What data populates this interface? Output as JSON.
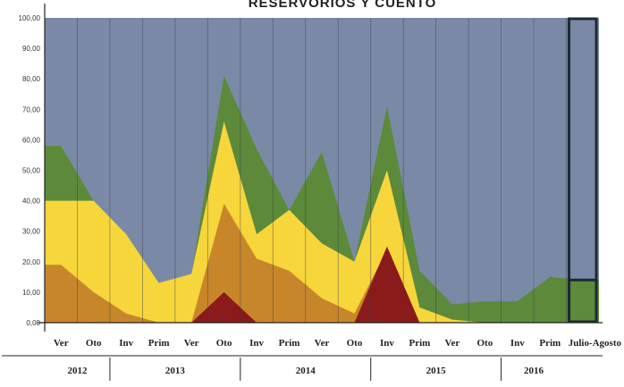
{
  "chart_data": {
    "type": "area",
    "title": "RESERVORIOS Y CUENTO",
    "ylim": [
      0,
      100
    ],
    "y_ticks": [
      "0,00",
      "10,00",
      "20,00",
      "30,00",
      "40,00",
      "50,00",
      "60,00",
      "70,00",
      "80,00",
      "90,00",
      "100,00"
    ],
    "categories": [
      "Ver",
      "Oto",
      "Inv",
      "Prim",
      "Ver",
      "Oto",
      "Inv",
      "Prim",
      "Ver",
      "Oto",
      "Inv",
      "Prim",
      "Ver",
      "Oto",
      "Inv",
      "Prim",
      "Julio-Agosto"
    ],
    "years": [
      {
        "label": "2012",
        "span": [
          0,
          1
        ]
      },
      {
        "label": "2013",
        "span": [
          2,
          5
        ]
      },
      {
        "label": "2014",
        "span": [
          6,
          9
        ]
      },
      {
        "label": "2015",
        "span": [
          10,
          13
        ]
      },
      {
        "label": "2016",
        "span": [
          14,
          15
        ]
      }
    ],
    "series": [
      {
        "color": "#8b1a1a",
        "values": [
          0,
          0,
          0,
          0,
          0,
          10,
          0,
          0,
          0,
          0,
          25,
          0,
          0,
          0,
          0,
          0,
          0
        ]
      },
      {
        "color": "#c8862a",
        "values": [
          19,
          10,
          3,
          0,
          0,
          39,
          21,
          17,
          8,
          3,
          24,
          0,
          0,
          0,
          0,
          0,
          0
        ]
      },
      {
        "color": "#f7d63c",
        "values": [
          40,
          40,
          29,
          13,
          16,
          66,
          29,
          37,
          26,
          20,
          50,
          5,
          1,
          0,
          0,
          0,
          0
        ]
      },
      {
        "color": "#5c8a3a",
        "values": [
          58,
          40,
          29,
          13,
          16,
          81,
          57,
          37,
          56,
          20,
          71,
          17,
          6,
          7,
          7,
          15,
          14
        ]
      },
      {
        "color": "#7a8aa6",
        "values": [
          100,
          100,
          100,
          100,
          100,
          100,
          100,
          100,
          100,
          100,
          100,
          100,
          100,
          100,
          100,
          100,
          100
        ]
      }
    ],
    "highlight_box": {
      "category": "Julio-Agosto",
      "color": "#1c2a33"
    },
    "grid": "vertical"
  }
}
